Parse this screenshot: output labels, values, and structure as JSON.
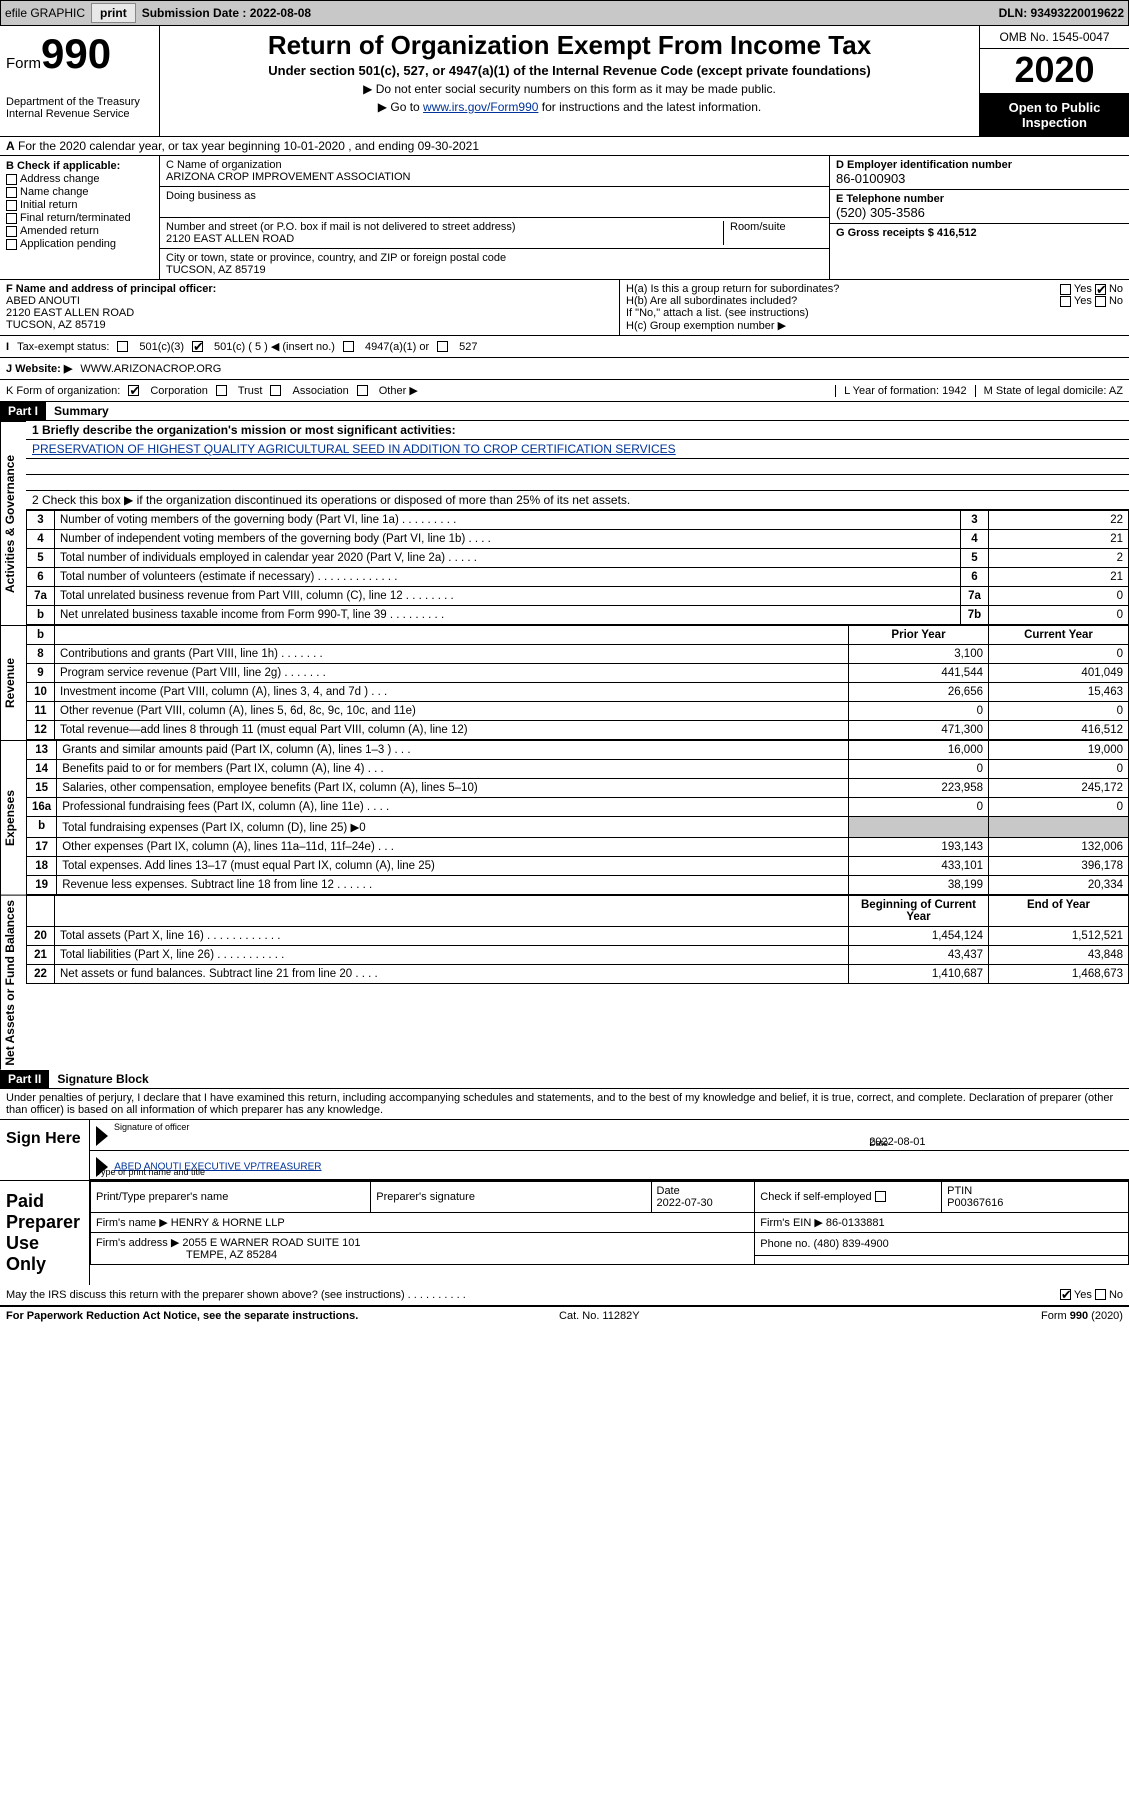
{
  "topbar": {
    "efile": "efile GRAPHIC",
    "print_btn": "print",
    "sub_label": "Submission Date : 2022-08-08",
    "dln": "DLN: 93493220019622"
  },
  "header": {
    "form_word": "Form",
    "form_num": "990",
    "dept": "Department of the Treasury\nInternal Revenue Service",
    "title": "Return of Organization Exempt From Income Tax",
    "subtitle": "Under section 501(c), 527, or 4947(a)(1) of the Internal Revenue Code (except private foundations)",
    "note1": "Do not enter social security numbers on this form as it may be made public.",
    "note2_pre": "Go to ",
    "note2_link": "www.irs.gov/Form990",
    "note2_post": " for instructions and the latest information.",
    "omb": "OMB No. 1545-0047",
    "year": "2020",
    "open": "Open to Public Inspection"
  },
  "sectA": "For the 2020 calendar year, or tax year beginning 10-01-2020    , and ending 09-30-2021",
  "B": {
    "hdr": "B Check if applicable:",
    "items": [
      "Address change",
      "Name change",
      "Initial return",
      "Final return/terminated",
      "Amended return",
      "Application pending"
    ],
    "C_lbl": "C Name of organization",
    "C_val": "ARIZONA CROP IMPROVEMENT ASSOCIATION",
    "dba_lbl": "Doing business as",
    "addr_lbl": "Number and street (or P.O. box if mail is not delivered to street address)",
    "addr_val": "2120 EAST ALLEN ROAD",
    "room_lbl": "Room/suite",
    "city_lbl": "City or town, state or province, country, and ZIP or foreign postal code",
    "city_val": "TUCSON, AZ  85719",
    "D_lbl": "D Employer identification number",
    "D_val": "86-0100903",
    "E_lbl": "E Telephone number",
    "E_val": "(520) 305-3586",
    "G_lbl": "G Gross receipts $ 416,512"
  },
  "FH": {
    "F_lbl": "F Name and address of principal officer:",
    "F_name": "ABED ANOUTI",
    "F_addr1": "2120 EAST ALLEN ROAD",
    "F_addr2": "TUCSON, AZ  85719",
    "Ha": "H(a)  Is this a group return for subordinates?",
    "Hb": "H(b)  Are all subordinates included?",
    "Hb_note": "If \"No,\" attach a list. (see instructions)",
    "Hc": "H(c)  Group exemption number ▶",
    "yes": "Yes",
    "no": "No"
  },
  "status": {
    "I_lbl": "Tax-exempt status:",
    "c3": "501(c)(3)",
    "c": "501(c) ( 5 ) ◀ (insert no.)",
    "a1": "4947(a)(1) or",
    "s527": "527",
    "J_lbl": "J  Website: ▶",
    "J_val": "WWW.ARIZONACROP.ORG",
    "K_lbl": "K Form of organization:",
    "K_corp": "Corporation",
    "K_trust": "Trust",
    "K_assoc": "Association",
    "K_other": "Other ▶",
    "L_lbl": "L Year of formation: 1942",
    "M_lbl": "M State of legal domicile: AZ"
  },
  "partI": {
    "hdr": "Part I",
    "title": "Summary",
    "q1": "1  Briefly describe the organization's mission or most significant activities:",
    "mission": "PRESERVATION OF HIGHEST QUALITY AGRICULTURAL SEED IN ADDITION TO CROP CERTIFICATION SERVICES",
    "q2": "2  Check this box ▶        if the organization discontinued its operations or disposed of more than 25% of its net assets.",
    "rows_gov": [
      {
        "n": "3",
        "d": "Number of voting members of the governing body (Part VI, line 1a)    .    .    .    .    .    .    .    .    .",
        "box": "3",
        "v": "22"
      },
      {
        "n": "4",
        "d": "Number of independent voting members of the governing body (Part VI, line 1b)    .    .    .    .",
        "box": "4",
        "v": "21"
      },
      {
        "n": "5",
        "d": "Total number of individuals employed in calendar year 2020 (Part V, line 2a)    .    .    .    .    .",
        "box": "5",
        "v": "2"
      },
      {
        "n": "6",
        "d": "Total number of volunteers (estimate if necessary)    .    .    .    .    .    .    .    .    .    .    .    .    .",
        "box": "6",
        "v": "21"
      },
      {
        "n": "7a",
        "d": "Total unrelated business revenue from Part VIII, column (C), line 12    .    .    .    .    .    .    .    .",
        "box": "7a",
        "v": "0"
      },
      {
        "n": "b",
        "d": "Net unrelated business taxable income from Form 990-T, line 39    .    .    .    .    .    .    .    .    .",
        "box": "7b",
        "v": "0"
      }
    ],
    "col_prior": "Prior Year",
    "col_curr": "Current Year",
    "rows_rev": [
      {
        "n": "8",
        "d": "Contributions and grants (Part VIII, line 1h)    .    .    .    .    .    .    .",
        "p": "3,100",
        "c": "0"
      },
      {
        "n": "9",
        "d": "Program service revenue (Part VIII, line 2g)    .    .    .    .    .    .    .",
        "p": "441,544",
        "c": "401,049"
      },
      {
        "n": "10",
        "d": "Investment income (Part VIII, column (A), lines 3, 4, and 7d )    .    .    .",
        "p": "26,656",
        "c": "15,463"
      },
      {
        "n": "11",
        "d": "Other revenue (Part VIII, column (A), lines 5, 6d, 8c, 9c, 10c, and 11e)",
        "p": "0",
        "c": "0"
      },
      {
        "n": "12",
        "d": "Total revenue—add lines 8 through 11 (must equal Part VIII, column (A), line 12)",
        "p": "471,300",
        "c": "416,512"
      }
    ],
    "rows_exp": [
      {
        "n": "13",
        "d": "Grants and similar amounts paid (Part IX, column (A), lines 1–3 )    .    .    .",
        "p": "16,000",
        "c": "19,000"
      },
      {
        "n": "14",
        "d": "Benefits paid to or for members (Part IX, column (A), line 4)    .    .    .",
        "p": "0",
        "c": "0"
      },
      {
        "n": "15",
        "d": "Salaries, other compensation, employee benefits (Part IX, column (A), lines 5–10)",
        "p": "223,958",
        "c": "245,172"
      },
      {
        "n": "16a",
        "d": "Professional fundraising fees (Part IX, column (A), line 11e)    .    .    .    .",
        "p": "0",
        "c": "0"
      },
      {
        "n": "b",
        "d": "Total fundraising expenses (Part IX, column (D), line 25) ▶0",
        "p": "",
        "c": "",
        "shade": true
      },
      {
        "n": "17",
        "d": "Other expenses (Part IX, column (A), lines 11a–11d, 11f–24e)    .    .    .",
        "p": "193,143",
        "c": "132,006"
      },
      {
        "n": "18",
        "d": "Total expenses. Add lines 13–17 (must equal Part IX, column (A), line 25)",
        "p": "433,101",
        "c": "396,178"
      },
      {
        "n": "19",
        "d": "Revenue less expenses. Subtract line 18 from line 12    .    .    .    .    .    .",
        "p": "38,199",
        "c": "20,334"
      }
    ],
    "col_boy": "Beginning of Current Year",
    "col_eoy": "End of Year",
    "rows_net": [
      {
        "n": "20",
        "d": "Total assets (Part X, line 16)    .    .    .    .    .    .    .    .    .    .    .    .",
        "p": "1,454,124",
        "c": "1,512,521"
      },
      {
        "n": "21",
        "d": "Total liabilities (Part X, line 26)    .    .    .    .    .    .    .    .    .    .    .",
        "p": "43,437",
        "c": "43,848"
      },
      {
        "n": "22",
        "d": "Net assets or fund balances. Subtract line 21 from line 20    .    .    .    .",
        "p": "1,410,687",
        "c": "1,468,673"
      }
    ],
    "side_gov": "Activities & Governance",
    "side_rev": "Revenue",
    "side_exp": "Expenses",
    "side_net": "Net Assets or Fund Balances"
  },
  "partII": {
    "hdr": "Part II",
    "title": "Signature Block",
    "penalty": "Under penalties of perjury, I declare that I have examined this return, including accompanying schedules and statements, and to the best of my knowledge and belief, it is true, correct, and complete. Declaration of preparer (other than officer) is based on all information of which preparer has any knowledge."
  },
  "sign": {
    "lbl": "Sign Here",
    "sig_of": "Signature of officer",
    "date_lbl": "Date",
    "date_val": "2022-08-01",
    "name": "ABED ANOUTI  EXECUTIVE VP/TREASURER",
    "name_lbl": "Type or print name and title"
  },
  "prep": {
    "lbl": "Paid Preparer Use Only",
    "h1": "Print/Type preparer's name",
    "h2": "Preparer's signature",
    "h3": "Date",
    "h3v": "2022-07-30",
    "h4": "Check        if self-employed",
    "h5": "PTIN",
    "h5v": "P00367616",
    "firm_name_lbl": "Firm's name      ▶",
    "firm_name": "HENRY & HORNE LLP",
    "ein_lbl": "Firm's EIN ▶ 86-0133881",
    "addr_lbl": "Firm's address ▶",
    "addr1": "2055 E WARNER ROAD SUITE 101",
    "addr2": "TEMPE, AZ  85284",
    "phone_lbl": "Phone no. (480) 839-4900",
    "discuss": "May the IRS discuss this return with the preparer shown above? (see instructions)    .    .    .    .    .    .    .    .    .    ."
  },
  "footer": {
    "left": "For Paperwork Reduction Act Notice, see the separate instructions.",
    "mid": "Cat. No. 11282Y",
    "right": "Form 990 (2020)"
  }
}
